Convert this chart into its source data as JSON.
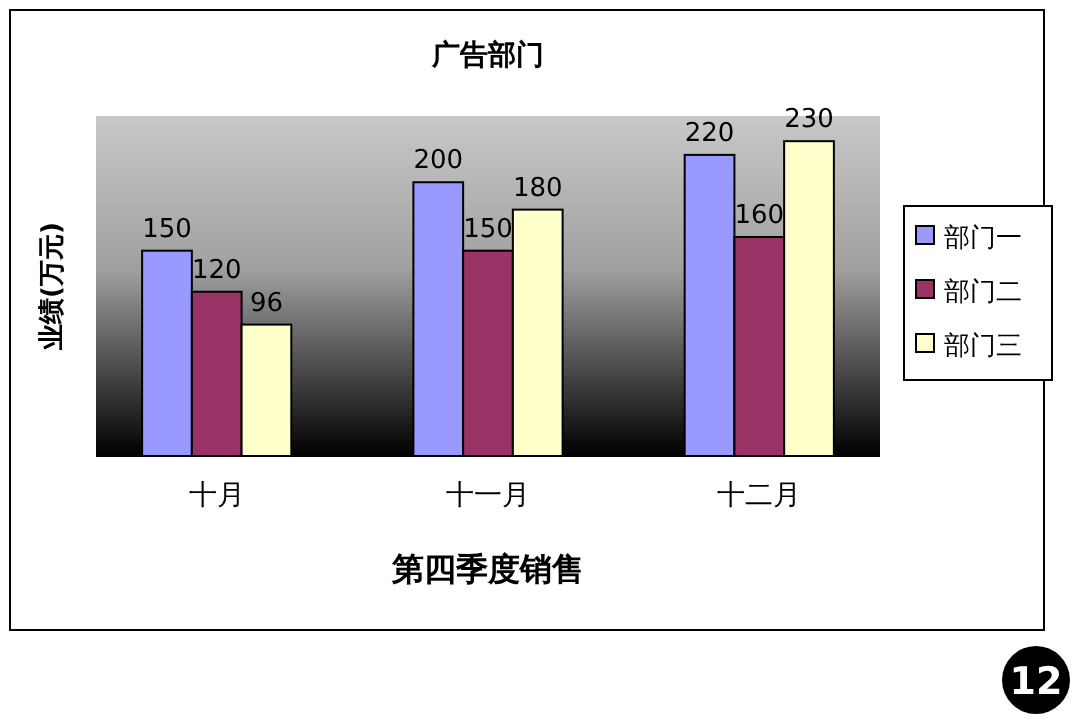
{
  "chart_data": {
    "type": "bar",
    "title": "广告部门",
    "xlabel": "第四季度销售",
    "ylabel": "业绩(万元)",
    "categories": [
      "十月",
      "十一月",
      "十二月"
    ],
    "series": [
      {
        "name": "部门一",
        "color": "#9999ff",
        "values": [
          150,
          200,
          220
        ]
      },
      {
        "name": "部门二",
        "color": "#993366",
        "values": [
          120,
          150,
          160
        ]
      },
      {
        "name": "部门三",
        "color": "#ffffcc",
        "values": [
          96,
          180,
          230
        ]
      }
    ],
    "data_labels": true,
    "legend": "right",
    "grid": false,
    "annotations": [
      "12"
    ]
  }
}
